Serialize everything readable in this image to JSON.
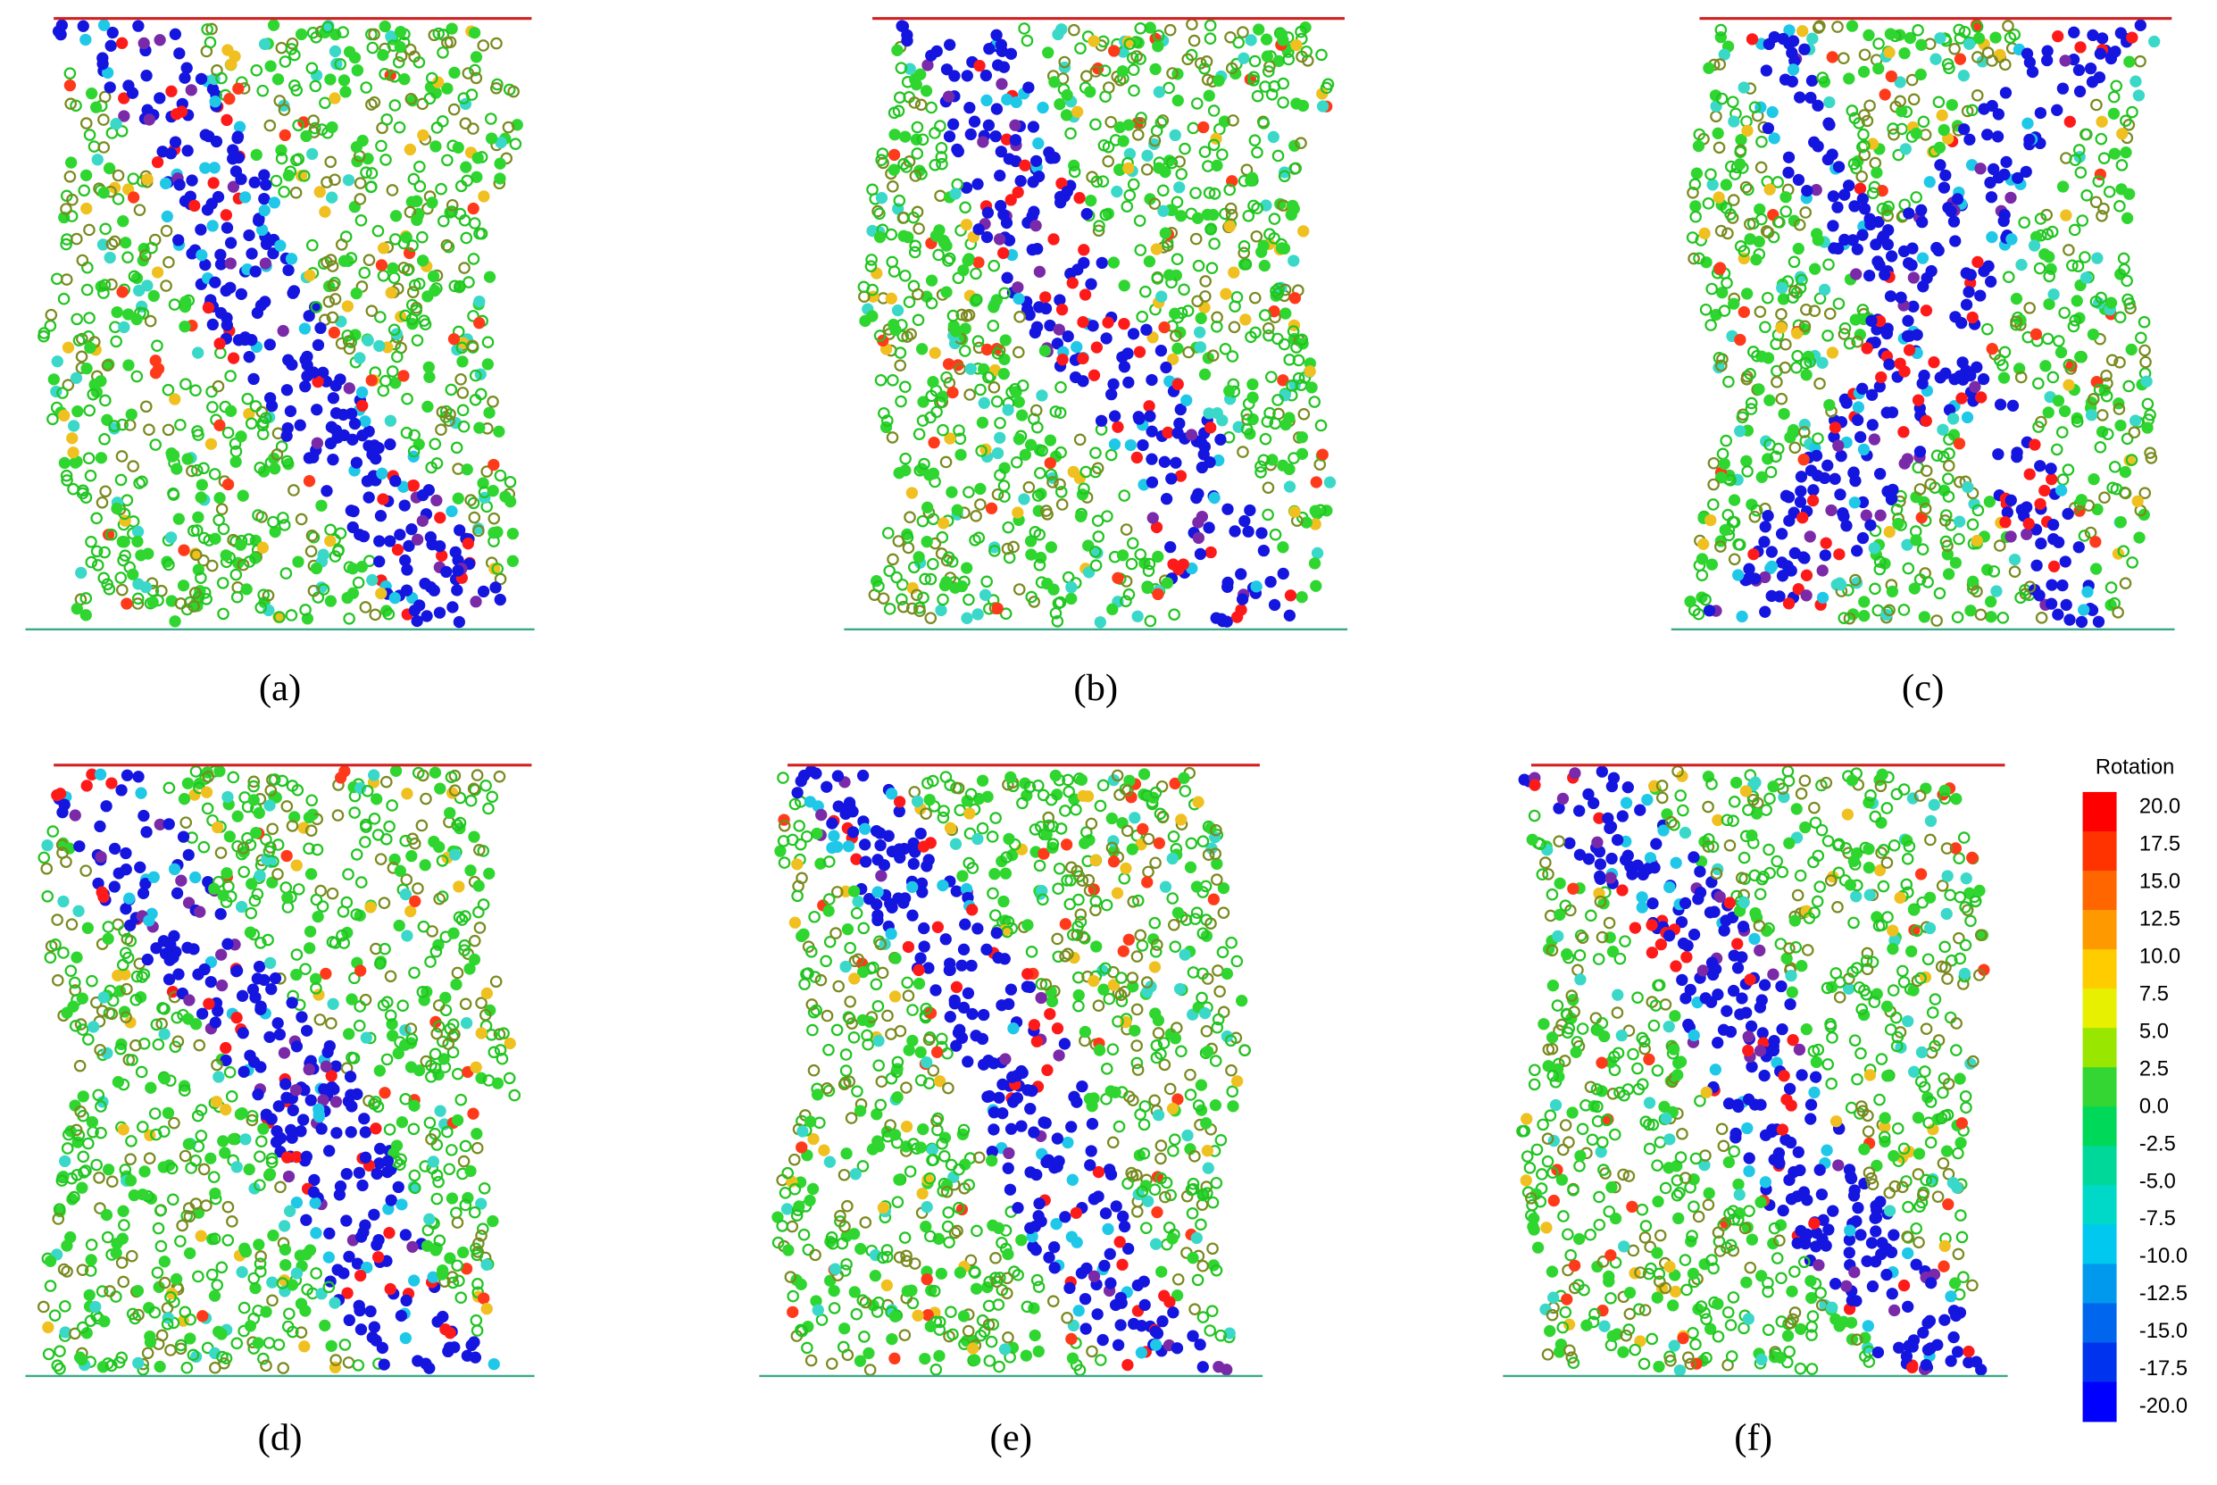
{
  "panels": [
    {
      "label": "(a)"
    },
    {
      "label": "(b)"
    },
    {
      "label": "(c)"
    },
    {
      "label": "(d)"
    },
    {
      "label": "(e)"
    },
    {
      "label": "(f)"
    }
  ],
  "colorbar": {
    "title": "Rotation",
    "ticks": [
      "20.0",
      "17.5",
      "15.0",
      "12.5",
      "10.0",
      "7.5",
      "5.0",
      "2.5",
      "0.0",
      "-2.5",
      "-5.0",
      "-7.5",
      "-10.0",
      "-12.5",
      "-15.0",
      "-17.5",
      "-20.0"
    ]
  }
}
